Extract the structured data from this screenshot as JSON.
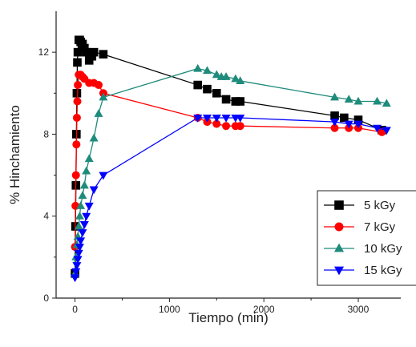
{
  "chart_data": {
    "type": "scatter",
    "xlabel": "Tiempo (min)",
    "ylabel": "% Hinchamiento",
    "xlim": [
      -200,
      3450
    ],
    "ylim": [
      0,
      14
    ],
    "xticks": [
      0,
      1000,
      2000,
      3000
    ],
    "xtick_labels": [
      "0",
      "1000",
      "2000",
      "3000"
    ],
    "yticks": [
      0,
      4,
      8,
      12
    ],
    "ytick_labels": [
      "0",
      "4",
      "8",
      "12"
    ],
    "grid": false,
    "legend_position": "bottom-right",
    "series": [
      {
        "name": "5 kGy",
        "color": "#000000",
        "marker": "square",
        "x": [
          0,
          5,
          10,
          15,
          20,
          25,
          30,
          40,
          50,
          60,
          80,
          100,
          120,
          150,
          180,
          200,
          300,
          1300,
          1400,
          1500,
          1600,
          1700,
          1750,
          2750,
          2850,
          3000,
          3250
        ],
        "y": [
          1.2,
          3.5,
          5.5,
          8.0,
          10.0,
          11.5,
          12.0,
          12.6,
          12.6,
          12.5,
          12.4,
          12.2,
          12.0,
          11.6,
          11.8,
          12.0,
          11.9,
          10.4,
          10.2,
          10.0,
          9.7,
          9.6,
          9.6,
          8.9,
          8.8,
          8.7,
          8.2
        ]
      },
      {
        "name": "7 kGy",
        "color": "#ff0000",
        "marker": "circle",
        "x": [
          0,
          5,
          10,
          15,
          20,
          25,
          30,
          40,
          60,
          80,
          100,
          150,
          200,
          250,
          300,
          1300,
          1400,
          1500,
          1600,
          1700,
          1750,
          2750,
          2900,
          3000,
          3250
        ],
        "y": [
          2.5,
          4.5,
          6.0,
          7.5,
          8.8,
          9.6,
          10.4,
          10.9,
          10.9,
          10.8,
          10.7,
          10.5,
          10.5,
          10.4,
          10.0,
          8.8,
          8.6,
          8.5,
          8.4,
          8.4,
          8.4,
          8.3,
          8.3,
          8.3,
          8.1
        ]
      },
      {
        "name": "10 kGy",
        "color": "#1f8b7b",
        "marker": "triangle-up",
        "x": [
          0,
          10,
          20,
          30,
          40,
          50,
          60,
          80,
          100,
          120,
          150,
          200,
          250,
          300,
          1300,
          1400,
          1500,
          1550,
          1600,
          1700,
          1750,
          2750,
          2900,
          3000,
          3200,
          3300
        ],
        "y": [
          1.2,
          2.0,
          2.6,
          3.0,
          3.5,
          4.0,
          4.5,
          5.0,
          5.5,
          6.2,
          6.8,
          7.8,
          9.0,
          9.8,
          11.2,
          11.1,
          10.9,
          10.8,
          10.8,
          10.7,
          10.6,
          9.8,
          9.7,
          9.6,
          9.6,
          9.5
        ]
      },
      {
        "name": "15 kGy",
        "color": "#0000ff",
        "marker": "triangle-down",
        "x": [
          0,
          10,
          20,
          30,
          40,
          50,
          60,
          80,
          100,
          120,
          150,
          200,
          300,
          1300,
          1400,
          1500,
          1600,
          1700,
          1750,
          2750,
          2900,
          3000,
          3200,
          3300
        ],
        "y": [
          1.0,
          1.3,
          1.6,
          1.9,
          2.2,
          2.5,
          2.8,
          3.2,
          3.6,
          4.0,
          4.5,
          5.3,
          6.0,
          8.8,
          8.8,
          8.8,
          8.8,
          8.8,
          8.8,
          8.6,
          8.5,
          8.5,
          8.3,
          8.2
        ]
      }
    ]
  }
}
